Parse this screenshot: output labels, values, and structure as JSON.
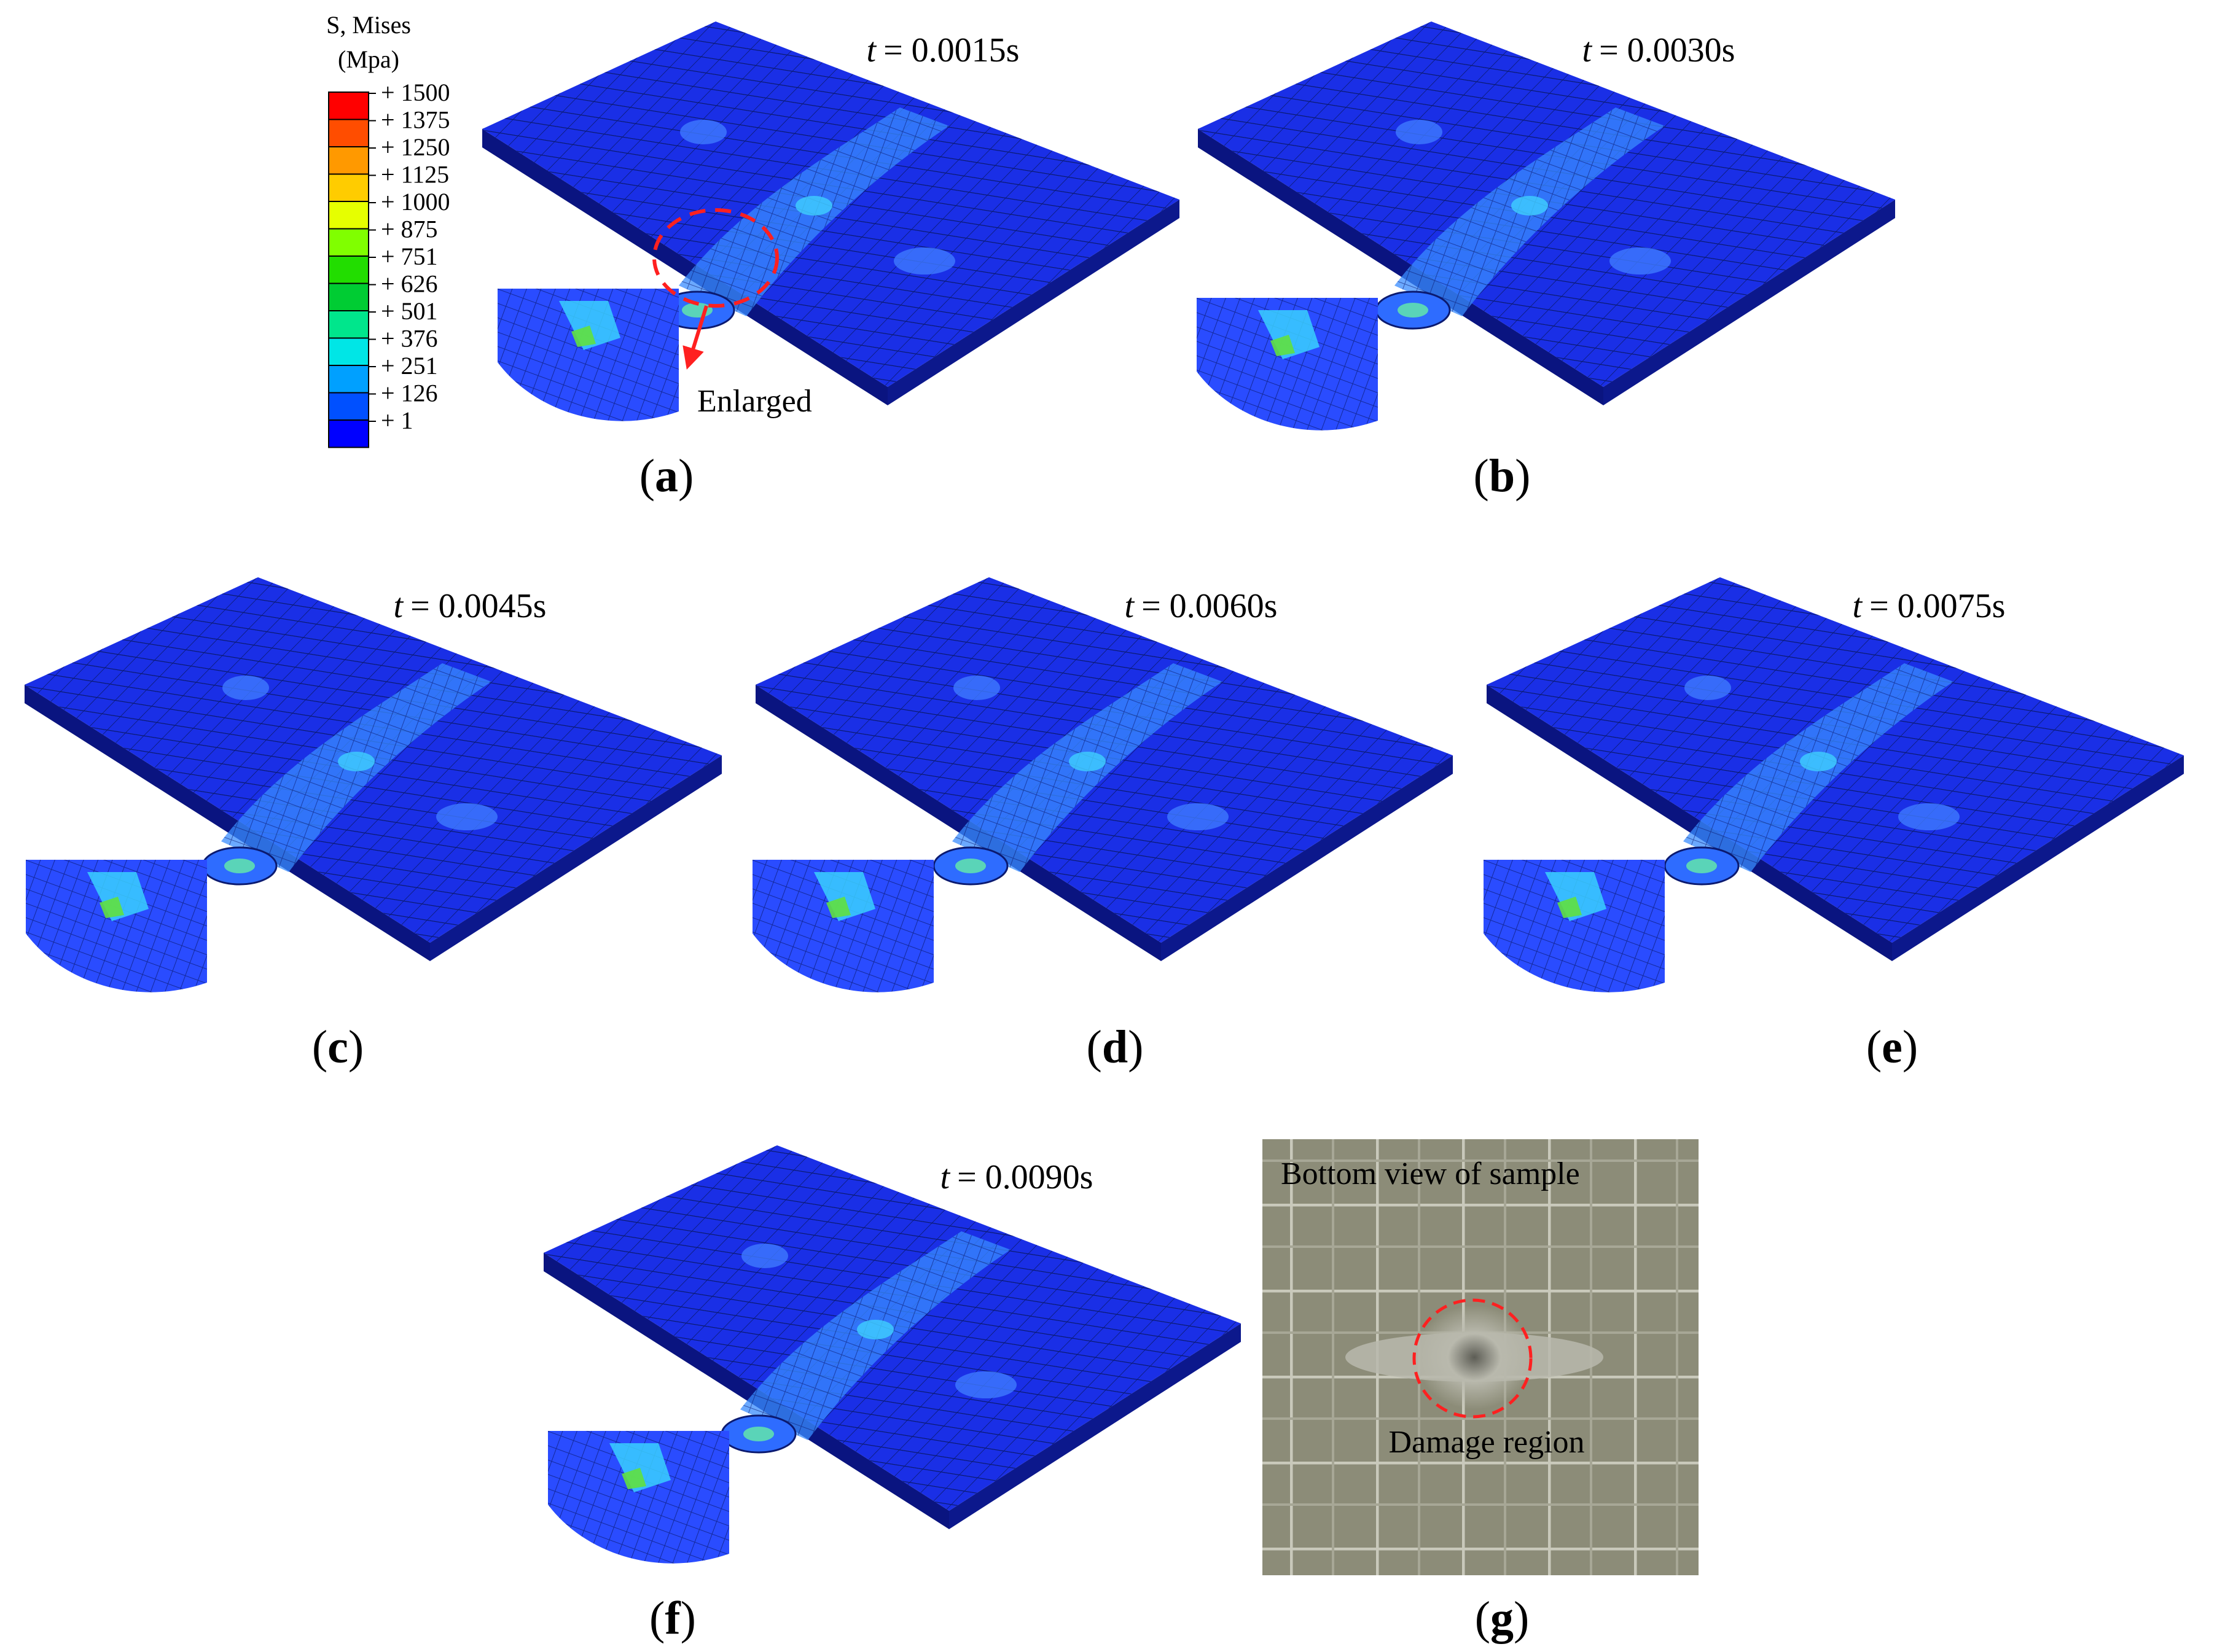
{
  "legend": {
    "title_line1": "S, Mises",
    "title_line2": "(Mpa)",
    "items": [
      {
        "label": "+ 1500",
        "color": "#ff0000"
      },
      {
        "label": "+ 1375",
        "color": "#ff4d00"
      },
      {
        "label": "+ 1250",
        "color": "#ff9900"
      },
      {
        "label": "+ 1125",
        "color": "#ffcc00"
      },
      {
        "label": "+ 1000",
        "color": "#e6ff00"
      },
      {
        "label": "+ 875",
        "color": "#80ff00"
      },
      {
        "label": "+ 751",
        "color": "#22dd00"
      },
      {
        "label": "+ 626",
        "color": "#00cc33"
      },
      {
        "label": "+ 501",
        "color": "#00e68c"
      },
      {
        "label": "+ 376",
        "color": "#00e6e6"
      },
      {
        "label": "+ 251",
        "color": "#00a0ff"
      },
      {
        "label": "+ 126",
        "color": "#0050ff"
      },
      {
        "label": "+ 1",
        "color": "#0000ff"
      }
    ]
  },
  "panels": [
    {
      "id": "a",
      "time_var": "t",
      "time_value": "= 0.0015s"
    },
    {
      "id": "b",
      "time_var": "t",
      "time_value": "= 0.0030s"
    },
    {
      "id": "c",
      "time_var": "t",
      "time_value": "= 0.0045s"
    },
    {
      "id": "d",
      "time_var": "t",
      "time_value": "= 0.0060s"
    },
    {
      "id": "e",
      "time_var": "t",
      "time_value": "= 0.0075s"
    },
    {
      "id": "f",
      "time_var": "t",
      "time_value": "= 0.0090s"
    },
    {
      "id": "g"
    }
  ],
  "enlarged_label": "Enlarged",
  "photo": {
    "title": "Bottom view of  sample",
    "damage_label": "Damage region"
  },
  "colors": {
    "plate_top": "#1a2fe6",
    "plate_side": "#0a1480",
    "mesh_line": "#0b1a70",
    "photo_bg": "#8c8c78",
    "dashed_circle": "#ff2020"
  }
}
